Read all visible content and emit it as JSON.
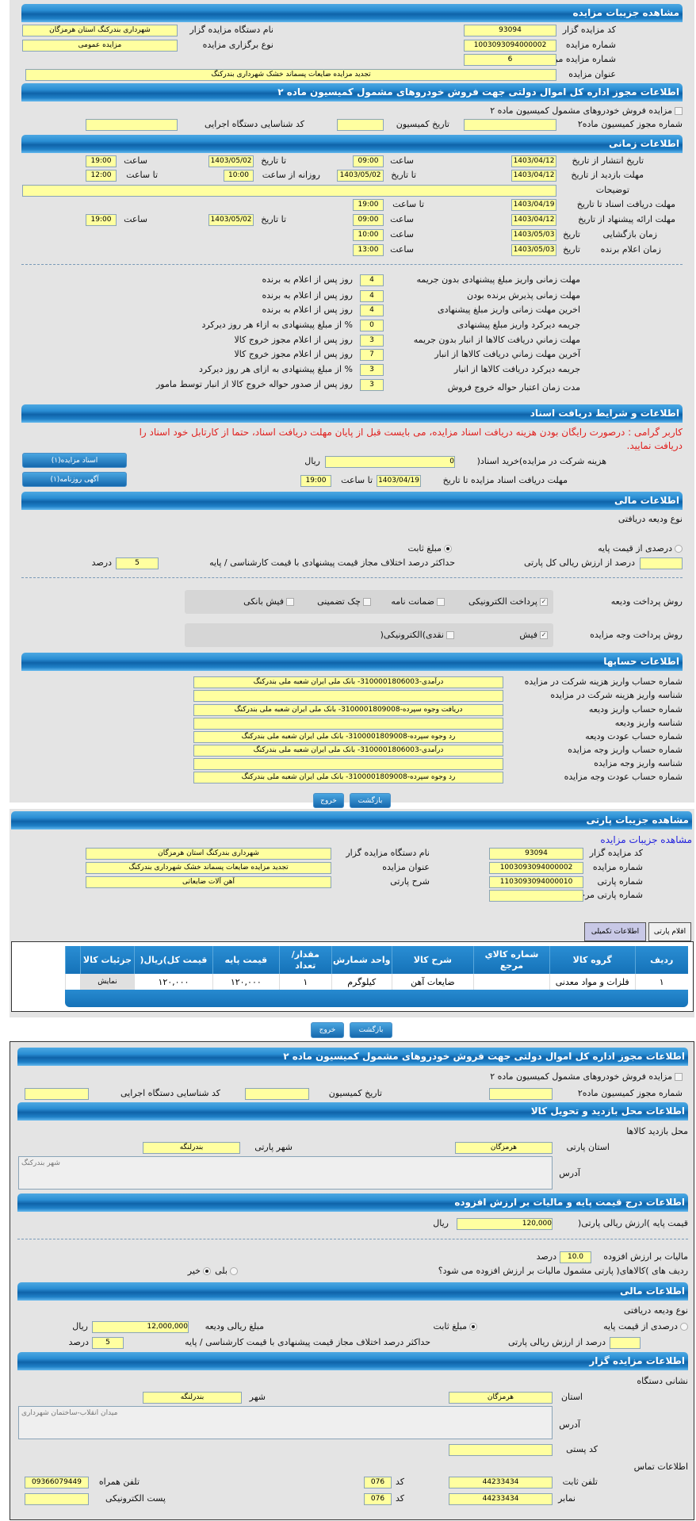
{
  "auction": {
    "title": "مشاهده جزیبات مزایده",
    "code_label": "کد مزایده گزار",
    "code": "93094",
    "agency_label": "نام دستگاه مزایده گزار",
    "agency": "شهرداری بندرکنگ استان هرمزگان",
    "number_label": "شماره مزایده",
    "number": "1003093094000002",
    "type_label": "نوع برگزاری مزایده",
    "type": "مزایده عمومی",
    "ref_label": "شماره مزایده مرجع",
    "ref": "6",
    "subject_label": "عنوان مزایده",
    "subject": "تجدید مزایده ضایعات پسماند خشک شهرداری بندرکنگ"
  },
  "commission": {
    "title": "اطلاعات مجوز اداره کل اموال دولتی جهت فروش خودروهای مشمول کمیسیون ماده ۲",
    "checkbox_label": "مزایده فروش خودروهای مشمول کمیسیون ماده ۲",
    "permit_label": "شماره مجوز کمیسیون ماده۲",
    "date_label": "تاریخ کمیسیون",
    "exec_label": "کد شناسایی دستگاه اجرایی"
  },
  "time": {
    "title": "اطلاعات زمانی",
    "publish_label": "تاریخ انتشار از تاریخ",
    "publish_from": "1403/04/12",
    "time_label": "ساعت",
    "publish_time": "09:00",
    "to_date_label": "تا تاریخ",
    "publish_to": "1403/05/02",
    "publish_to_time": "19:00",
    "visit_label": "مهلت بازدید از تاریخ",
    "visit_from": "1403/04/12",
    "visit_to": "1403/05/02",
    "daily_label": "روزانه از ساعت",
    "daily_from": "10:00",
    "to_time_label": "تا ساعت",
    "daily_to": "12:00",
    "desc_label": "توضیحات",
    "docs_label": "مهلت دریافت اسناد تا تاریخ",
    "docs_to": "1403/04/19",
    "docs_time": "19:00",
    "offer_label": "مهلت ارائه پیشنهاد از تاریخ",
    "offer_from": "1403/04/12",
    "offer_time": "09:00",
    "offer_to": "1403/05/02",
    "offer_to_time": "19:00",
    "opening_label": "زمان بازگشایی",
    "date_label": "تاریخ",
    "opening_date": "1403/05/03",
    "opening_time": "10:00",
    "winner_label": "زمان اعلام برنده",
    "winner_date": "1403/05/03",
    "winner_time": "13:00"
  },
  "deadlines": [
    {
      "label": "مهلت زمانی واریز مبلغ پیشنهادی بدون جریمه",
      "value": "4",
      "suffix": "روز پس از اعلام به برنده"
    },
    {
      "label": "مهلت زمانی پذیرش برنده بودن",
      "value": "4",
      "suffix": "روز پس از اعلام به برنده"
    },
    {
      "label": "اخرین مهلت زمانی واریز مبلغ پیشنهادی",
      "value": "4",
      "suffix": "روز پس از اعلام به برنده"
    },
    {
      "label": "جریمه دیرکرد واریز مبلغ پیشنهادی",
      "value": "0",
      "suffix": "% از مبلغ پیشنهادی به ازاء هر روز دیرکرد"
    },
    {
      "label": "مهلت زماني دريافت كالاها از انبار بدون جريمه",
      "value": "3",
      "suffix": "روز پس از اعلام مجوز خروج كالا"
    },
    {
      "label": "آخرين مهلت زماني دريافت كالاها از انبار",
      "value": "7",
      "suffix": "روز پس از اعلام مجوز خروج كالا"
    },
    {
      "label": "جریمه دیرکرد دریافت کالاها از انبار",
      "value": "3",
      "suffix": "% از مبلغ پیشنهادی به ازای هر روز دیرکرد"
    },
    {
      "label": "مدت زمان اعتبار حواله خروج فروش",
      "value": "3",
      "suffix": "روز پس از صدور حواله خروج کالا از انبار توسط مامور"
    }
  ],
  "docs": {
    "title": "اطلاعات و شرایط دریافت اسناد",
    "notice": "کاربر گرامی : درصورت رایگان بودن هزینه دریافت اسناد مزایده، می بایست قبل از پایان مهلت دریافت اسناد، حتما از کارتابل خود اسناد را دریافت نمایید.",
    "cost_label": "هزینه شرکت در مزایده)خرید اسناد(",
    "cost": "0",
    "rial": "ریال",
    "deadline_label": "مهلت دریافت اسناد مزایده تا تاریخ",
    "deadline_date": "1403/04/19",
    "to_time": "تا ساعت",
    "deadline_time": "19:00",
    "btn_docs": "اسناد مزایده(۱)",
    "btn_ad": "آگهی روزنامه(۱)"
  },
  "finance": {
    "title": "اطلاعات مالی",
    "deposit_type": "نوع ودیعه دریافتی",
    "pct_label": "درصدی از قیمت پایه",
    "fixed_label": "مبلغ ثابت",
    "pct_value_label": "درصد از ارزش ریالی کل پارتی",
    "max_diff_label": "حداکثر درصد اختلاف مجاز قیمت پیشنهادی با قیمت کارشناسی / پایه",
    "max_diff": "5",
    "percent": "درصد",
    "deposit_method_label": "روش پرداخت ودیعه",
    "methods": [
      {
        "label": "پرداخت الکترونیکی",
        "checked": true
      },
      {
        "label": "ضمانت نامه",
        "checked": false
      },
      {
        "label": "چک تضمینی",
        "checked": false
      },
      {
        "label": "فیش بانکی",
        "checked": false
      }
    ],
    "pay_method_label": "روش پرداخت وجه مزایده",
    "pay_methods": [
      {
        "label": "فیش",
        "checked": true
      },
      {
        "label": "نقدی)الکترونیکی(",
        "checked": false
      }
    ]
  },
  "accounts": {
    "title": "اطلاعات حسابها",
    "rows": [
      {
        "label": "شماره حساب واریز هزینه شرکت در مزایده",
        "value": "درآمدی-3100001806003- بانک ملی ایران شعبه ملی بندرکنگ"
      },
      {
        "label": "شناسه واریز هزینه شرکت در مزایده",
        "value": ""
      },
      {
        "label": "شماره حساب واریز ودیعه",
        "value": "دریافت وجوه سپرده-3100001809008- بانک ملی ایران شعبه ملی بندرکنگ"
      },
      {
        "label": "شناسه واریز ودیعه",
        "value": ""
      },
      {
        "label": "شماره حساب عودت ودیعه",
        "value": "رد وجوه سپرده-3100001809008- بانک ملی ایران شعبه ملی بندرکنگ"
      },
      {
        "label": "شماره حساب واریز وجه مزایده",
        "value": "درآمدی-3100001806003- بانک ملی ایران شعبه ملی بندرکنگ"
      },
      {
        "label": "شناسه واریز وجه مزایده",
        "value": ""
      },
      {
        "label": "شماره حساب عودت وجه مزایده",
        "value": "رد وجوه سپرده-3100001809008- بانک ملی ایران شعبه ملی بندرکنگ"
      }
    ]
  },
  "buttons": {
    "back": "بازگشت",
    "exit": "خروج"
  },
  "lot": {
    "title": "مشاهده جزیبات پارتی",
    "link": "مشاهده جزیبات مزایده",
    "code_label": "کد مزایده گزار",
    "code": "93094",
    "agency_label": "نام دستگاه مزایده گزار",
    "agency": "شهرداری بندرکنگ استان هرمزگان",
    "number_label": "شماره مزایده",
    "number": "1003093094000002",
    "subject_label": "عنوان مزایده",
    "subject": "تجدید مزایده ضایعات پسماند خشک شهرداری بندرکنگ",
    "lot_no_label": "شماره پارتی",
    "lot_no": "1103093094000010",
    "desc_label": "شرح پارتی",
    "desc": "آهن آلات ضایعاتی",
    "ref_label": "شماره پارتی مرجع",
    "ref": "",
    "tabs": [
      "اقلام پارتی",
      "اطلاعات تکمیلی"
    ]
  },
  "table": {
    "headers": [
      "ردیف",
      "گروه کالا",
      "شماره کالاي مرجع",
      "شرح کالا",
      "واحد شمارش",
      "مقدار/ تعداد",
      "قیمت پایه",
      "قیمت کل)ریال(",
      "جزئیات کالا"
    ],
    "rows": [
      [
        "۱",
        "فلزات و مواد معدنی",
        "",
        "ضایعات آهن",
        "کیلوگرم",
        "۱",
        "۱۲۰,۰۰۰",
        "۱۲۰,۰۰۰",
        "نمایش"
      ]
    ]
  },
  "visit": {
    "title": "اطلاعات محل بازدید و تحویل کالا",
    "place_label": "محل بازدید کالاها",
    "province_label": "استان پارتی",
    "province": "هرمزگان",
    "city_label": "شهر پارتی",
    "city": "بندرلنگه",
    "address_label": "آدرس",
    "address": "شهر بندرکنگ"
  },
  "price": {
    "title": "اطلاعات درج قیمت پایه و مالیات بر ارزش افزوده",
    "base_label": "قیمت پایه )ارزش ریالی پارتی(",
    "base": "120,000",
    "rial": "ریال",
    "vat_label": "مالیات بر ارزش افزوده",
    "vat": "10.0",
    "percent": "درصد",
    "vat_q": "ردیف های )کالاهای( پارتی مشمول مالیات بر ارزش افزوده می شود؟",
    "yes": "بلی",
    "no": "خیر"
  },
  "finance2": {
    "title": "اطلاعات مالی",
    "deposit_type": "نوع ودیعه دریافتی",
    "pct_label": "درصدی از قیمت پایه",
    "fixed_label": "مبلغ ثابت",
    "amount_label": "مبلغ ریالی ودیعه",
    "amount": "12,000,000",
    "rial": "ریال",
    "pct_value_label": "درصد از ارزش ریالی پارتی",
    "max_diff_label": "حداکثر درصد اختلاف مجاز قیمت پیشنهادی با قیمت کارشناسی / پایه",
    "max_diff": "5",
    "percent": "درصد"
  },
  "auctioneer": {
    "title": "اطلاعات مزایده گزار",
    "address_title": "نشانی دستگاه",
    "province_label": "استان",
    "province": "هرمزگان",
    "city_label": "شهر",
    "city": "بندرلنگه",
    "address_label": "آدرس",
    "address": "میدان انقلاب-ساختمان شهرداری",
    "postal_label": "کد پستی",
    "postal": "",
    "contact_title": "اطلاعات تماس",
    "phone_label": "تلفن ثابت",
    "phone": "44233434",
    "code_label": "کد",
    "phone_code": "076",
    "mobile_label": "تلفن همراه",
    "mobile": "09366079449",
    "fax_label": "نمابر",
    "fax": "44233434",
    "fax_code": "076",
    "email_label": "پست الکترونیکی",
    "email": ""
  },
  "colors": {
    "header": "#1f7fc6",
    "field": "#ffffa0",
    "notice": "#e0201e",
    "panel": "#e4e4e4"
  }
}
